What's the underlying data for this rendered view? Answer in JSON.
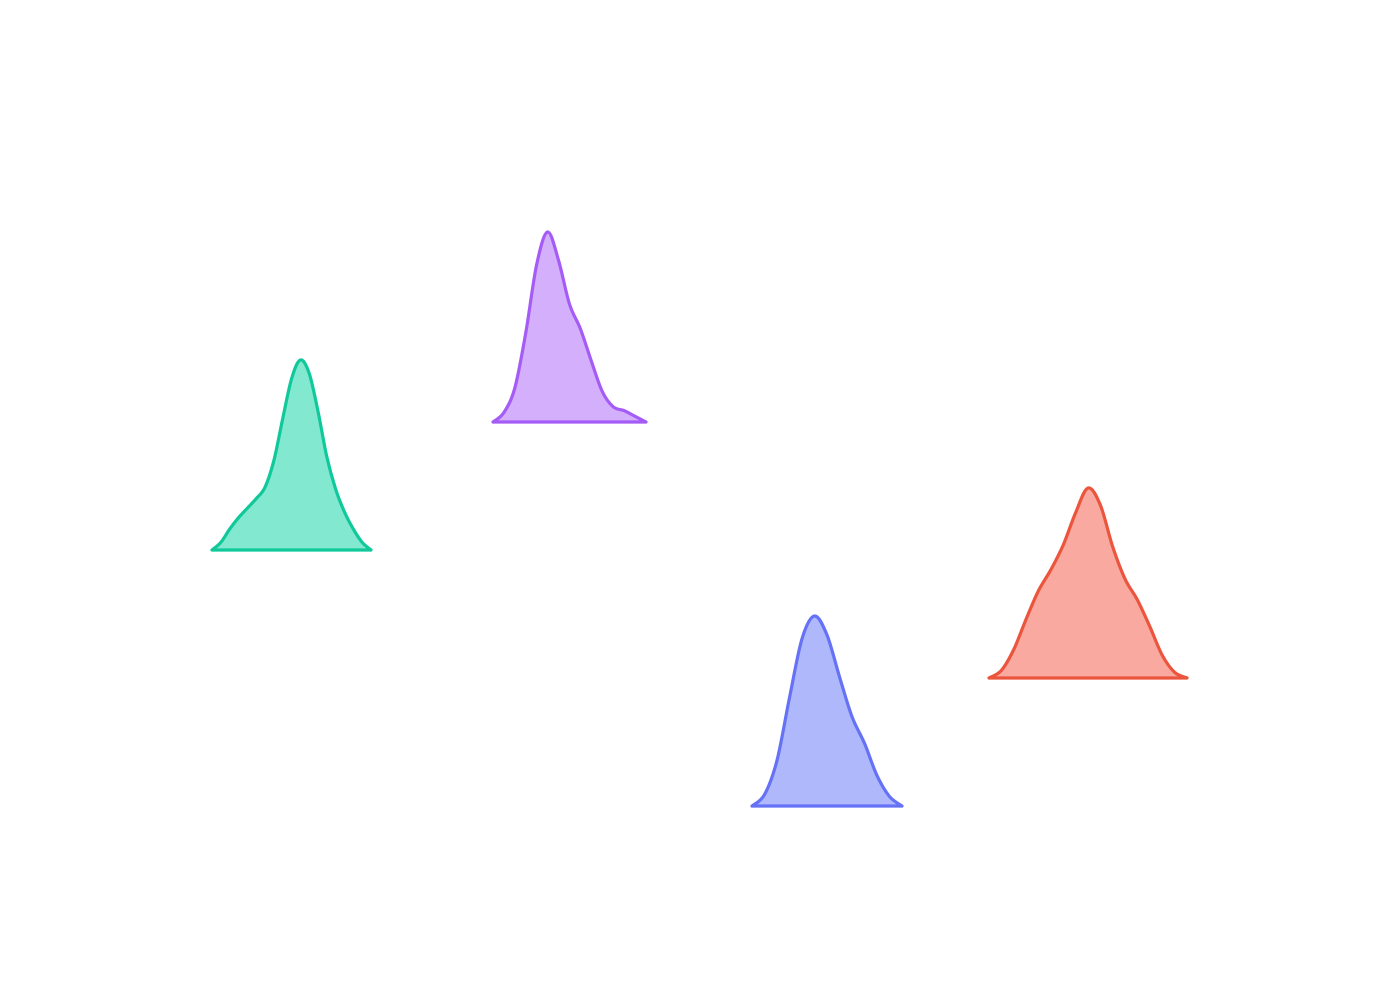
{
  "chart_data": {
    "type": "ridgeline",
    "grid": false,
    "legend": "none",
    "x_label": "",
    "y_label": "",
    "series": [
      {
        "color": "#10c99a",
        "fill": "#82e8cf",
        "peak_height": 1.0,
        "density_profile": [
          0.0,
          0.04,
          0.11,
          0.17,
          0.22,
          0.27,
          0.33,
          0.47,
          0.69,
          0.9,
          1.0,
          0.93,
          0.73,
          0.49,
          0.32,
          0.2,
          0.11,
          0.04,
          0.0
        ]
      },
      {
        "color": "#a55bf5",
        "fill": "#d4b0fc",
        "peak_height": 1.0,
        "density_profile": [
          0.0,
          0.05,
          0.18,
          0.47,
          0.83,
          1.0,
          0.85,
          0.62,
          0.49,
          0.32,
          0.16,
          0.08,
          0.06,
          0.03,
          0.0
        ]
      },
      {
        "color": "#6572f5",
        "fill": "#b0b8fc",
        "peak_height": 1.0,
        "density_profile": [
          0.0,
          0.06,
          0.24,
          0.57,
          0.88,
          1.0,
          0.9,
          0.68,
          0.47,
          0.33,
          0.16,
          0.05,
          0.0
        ]
      },
      {
        "color": "#ec553d",
        "fill": "#f9a99f",
        "peak_height": 1.0,
        "density_profile": [
          0.0,
          0.04,
          0.15,
          0.31,
          0.46,
          0.57,
          0.7,
          0.87,
          1.0,
          0.91,
          0.69,
          0.52,
          0.41,
          0.27,
          0.12,
          0.03,
          0.0
        ]
      }
    ]
  }
}
